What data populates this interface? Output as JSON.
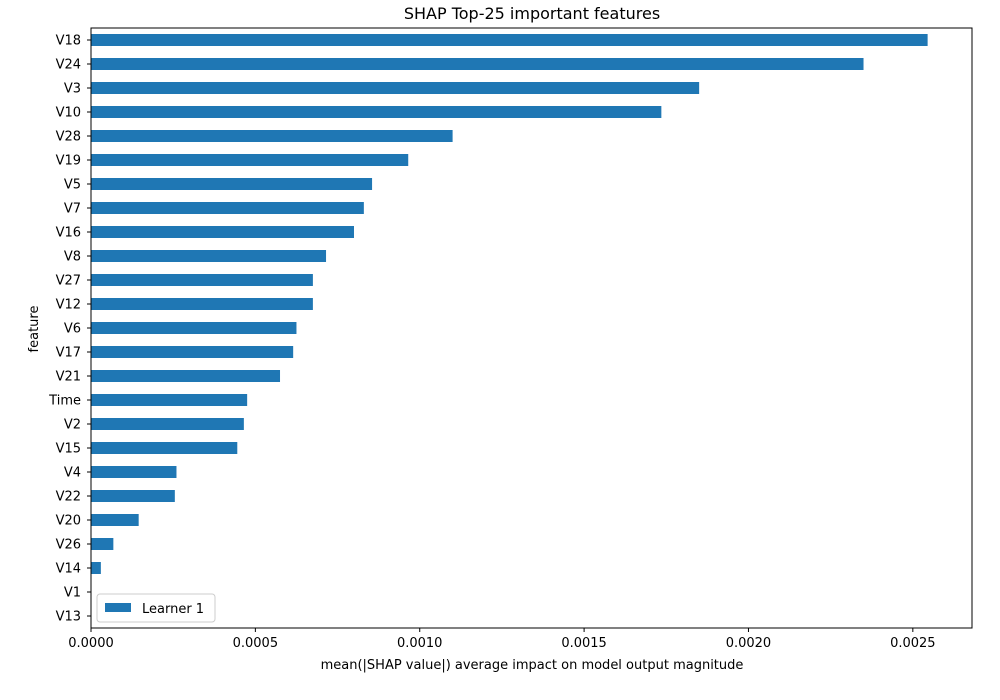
{
  "chart_data": {
    "type": "bar",
    "orientation": "horizontal",
    "title": "SHAP Top-25 important features",
    "xlabel": "mean(|SHAP value|) average impact on model output magnitude",
    "ylabel": "feature",
    "xlim": [
      0,
      0.00268
    ],
    "x_ticks": [
      0.0,
      0.0005,
      0.001,
      0.0015,
      0.002,
      0.0025
    ],
    "x_tick_labels": [
      "0.0000",
      "0.0005",
      "0.0010",
      "0.0015",
      "0.0020",
      "0.0025"
    ],
    "categories": [
      "V18",
      "V24",
      "V3",
      "V10",
      "V28",
      "V19",
      "V5",
      "V7",
      "V16",
      "V8",
      "V27",
      "V12",
      "V6",
      "V17",
      "V21",
      "Time",
      "V2",
      "V15",
      "V4",
      "V22",
      "V20",
      "V26",
      "V14",
      "V1",
      "V13"
    ],
    "series": [
      {
        "name": "Learner 1",
        "color": "#1f77b4",
        "values": [
          0.002545,
          0.00235,
          0.00185,
          0.001735,
          0.0011,
          0.000965,
          0.000855,
          0.00083,
          0.0008,
          0.000715,
          0.000675,
          0.000675,
          0.000625,
          0.000615,
          0.000575,
          0.000475,
          0.000465,
          0.000445,
          0.00026,
          0.000255,
          0.000145,
          6.8e-05,
          3e-05,
          0.0,
          0.0
        ]
      }
    ],
    "grid": false,
    "legend_position": "lower-left"
  }
}
